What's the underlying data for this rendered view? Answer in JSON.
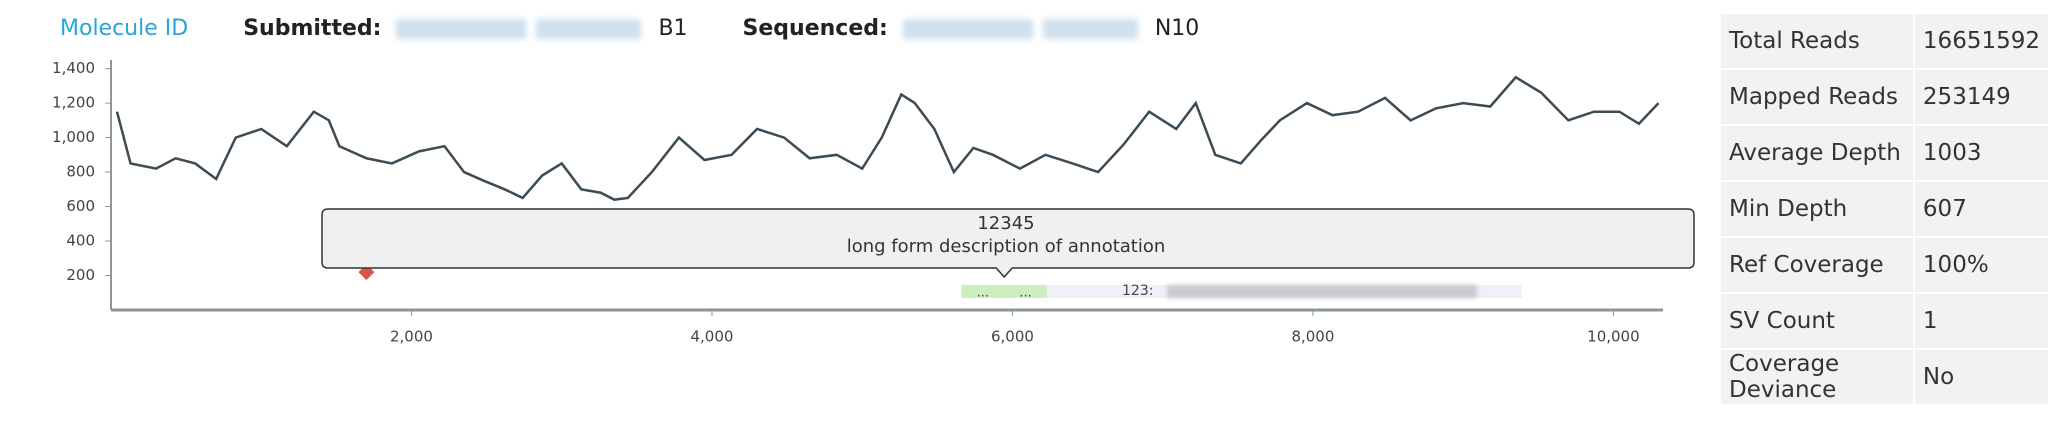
{
  "header": {
    "molecule_id": "Molecule ID",
    "submitted_label": "Submitted:",
    "submitted_value": "B1",
    "sequenced_label": "Sequenced:",
    "sequenced_value": "N10"
  },
  "chart_data": {
    "type": "line",
    "color": "#3d4b55",
    "x": [
      40,
      130,
      300,
      430,
      560,
      700,
      830,
      1000,
      1170,
      1350,
      1450,
      1520,
      1700,
      1870,
      2050,
      2220,
      2350,
      2480,
      2620,
      2740,
      2870,
      3000,
      3130,
      3260,
      3350,
      3440,
      3600,
      3780,
      3950,
      4130,
      4300,
      4480,
      4650,
      4830,
      5000,
      5130,
      5260,
      5350,
      5480,
      5610,
      5740,
      5870,
      6050,
      6220,
      6400,
      6570,
      6740,
      6910,
      7090,
      7220,
      7350,
      7520,
      7650,
      7780,
      7960,
      8130,
      8300,
      8480,
      8650,
      8820,
      9000,
      9180,
      9350,
      9520,
      9700,
      9870,
      10040,
      10170,
      10300
    ],
    "values": [
      1150,
      850,
      820,
      880,
      850,
      760,
      1000,
      1050,
      950,
      1150,
      1100,
      950,
      880,
      850,
      920,
      950,
      800,
      750,
      700,
      650,
      780,
      850,
      700,
      680,
      640,
      650,
      800,
      1000,
      870,
      900,
      1050,
      1000,
      880,
      900,
      820,
      1000,
      1250,
      1200,
      1050,
      800,
      940,
      900,
      820,
      900,
      850,
      800,
      960,
      1150,
      1050,
      1200,
      900,
      850,
      980,
      1100,
      1200,
      1130,
      1150,
      1230,
      1100,
      1170,
      1200,
      1180,
      1350,
      1260,
      1100,
      1150,
      1150,
      1080,
      1200
    ],
    "xlim": [
      0,
      10330
    ],
    "ylim": [
      0,
      1450
    ],
    "xticks": [
      {
        "value": 2000,
        "label": "2,000"
      },
      {
        "value": 4000,
        "label": "4,000"
      },
      {
        "value": 6000,
        "label": "6,000"
      },
      {
        "value": 8000,
        "label": "8,000"
      },
      {
        "value": 10000,
        "label": "10,000"
      }
    ],
    "yticks": [
      200,
      400,
      600,
      800,
      {
        "value": 1000,
        "label": "1,000"
      },
      {
        "value": 1200,
        "label": "1,200"
      },
      {
        "value": 1400,
        "label": "1,400"
      }
    ],
    "marker": {
      "x": 1700,
      "y": 220,
      "color": "#d9534f"
    },
    "region": {
      "start": 5660,
      "end": 6230,
      "color": "#cdefc0",
      "labels": [
        "...",
        "..."
      ]
    },
    "track": {
      "start": 6230,
      "end": 9390,
      "color": "#f1effa",
      "label": "123:"
    },
    "annotation": {
      "id": "12345",
      "description": "long form description of annotation"
    }
  },
  "stats": {
    "rows": [
      [
        "Total Reads",
        "16651592"
      ],
      [
        "Mapped Reads",
        "253149"
      ],
      [
        "Average Depth",
        "1003"
      ],
      [
        "Min Depth",
        "607"
      ],
      [
        "Ref Coverage",
        "100%"
      ],
      [
        "SV Count",
        "1"
      ],
      [
        "Coverage Deviance",
        "No"
      ]
    ]
  }
}
